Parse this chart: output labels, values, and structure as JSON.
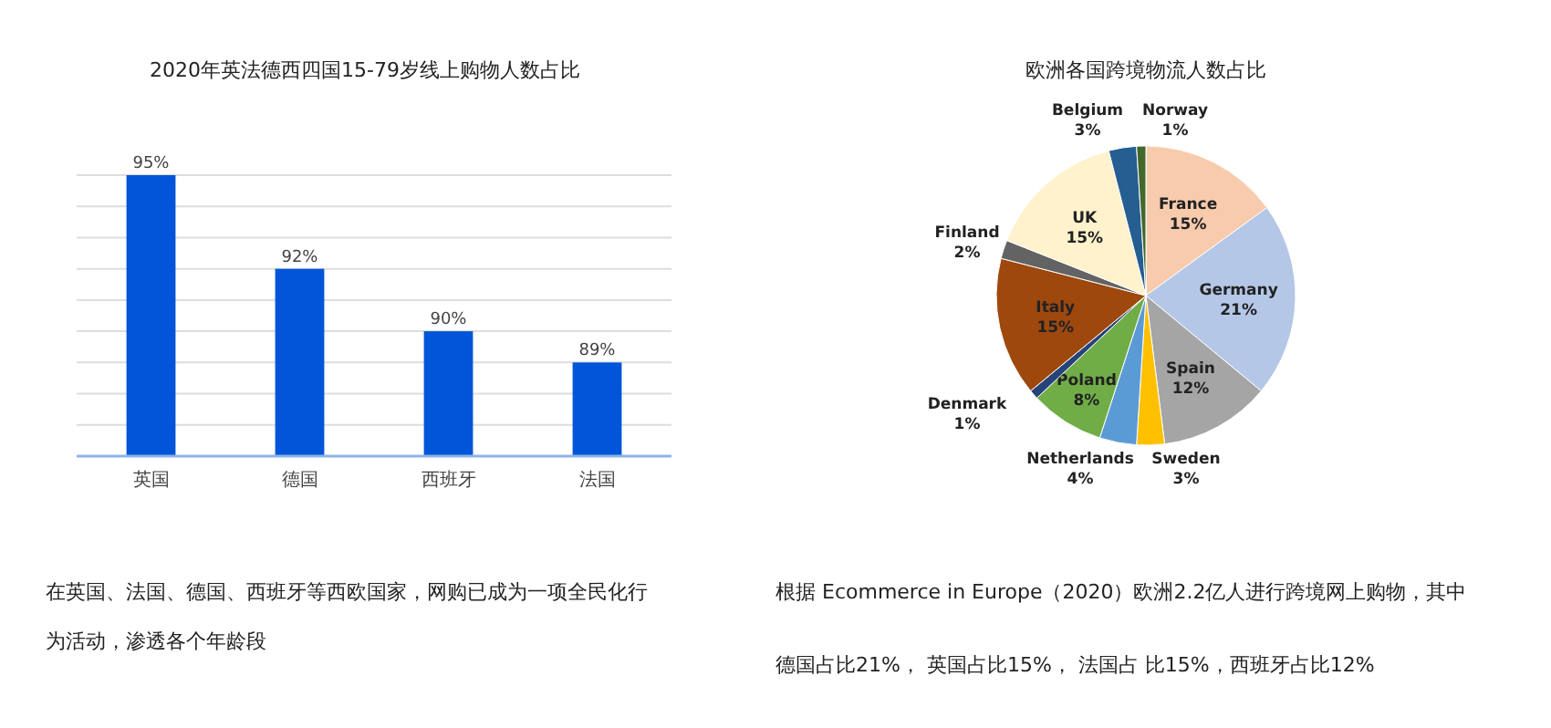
{
  "chart_data": [
    {
      "type": "bar",
      "title": "2020年英法德西四国15-79岁线上购物人数占比",
      "categories": [
        "英国",
        "德国",
        "西班牙",
        "法国"
      ],
      "values": [
        95,
        92,
        90,
        89
      ],
      "color": "#0055d8",
      "value_labels": [
        "95%",
        "92%",
        "90%",
        "89%"
      ],
      "ylim": [
        86,
        95
      ],
      "yticks": [
        {
          "value": 86,
          "label": null
        },
        {
          "value": 87,
          "label": null
        },
        {
          "value": 88,
          "label": null
        },
        {
          "value": 89,
          "label": null
        },
        {
          "value": 90,
          "label": null
        },
        {
          "value": 91,
          "label": null
        },
        {
          "value": 92,
          "label": null
        },
        {
          "value": 93,
          "label": null
        },
        {
          "value": 94,
          "label": null
        },
        {
          "value": 95,
          "label": null
        }
      ],
      "tick_labels": "x",
      "grid": "y",
      "legend": false,
      "annotations": [
        "在英国、法国、德国、西班牙等西欧国家，网购已成为一项全民化行为活动，渗透各个年龄段"
      ]
    },
    {
      "type": "pie",
      "title": "欧洲各国跨境物流人数占比",
      "categories": [
        "France",
        "Germany",
        "Spain",
        "Sweden",
        "Netherlands",
        "Poland",
        "Denmark",
        "Italy",
        "Finland",
        "UK",
        "Belgium",
        "Norway"
      ],
      "values": [
        15,
        21,
        12,
        3,
        4,
        8,
        1,
        15,
        2,
        15,
        3,
        1
      ],
      "colors": [
        "#f8cbad",
        "#b4c7e7",
        "#a5a5a5",
        "#ffc000",
        "#5b9bd5",
        "#70ad47",
        "#264478",
        "#9e480e",
        "#636363",
        "#fff2cc",
        "#255e91",
        "#43682b"
      ],
      "value_labels": [
        "15%",
        "21%",
        "12%",
        "3%",
        "4%",
        "8%",
        "1%",
        "15%",
        "2%",
        "15%",
        "3%",
        "1%"
      ],
      "legend": false,
      "annotations": [
        "根据 Ecommerce in Europe（2020）欧洲2.2亿人进行跨境网上购物，其中",
        "德国占比21%，  英国占比15%，  法国占 比15%，西班牙占比12%"
      ]
    }
  ]
}
